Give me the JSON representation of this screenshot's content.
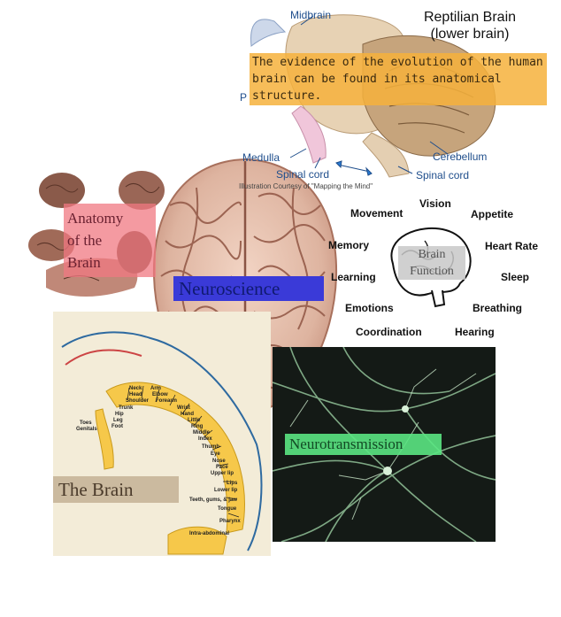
{
  "reptilian": {
    "title_line1": "Reptilian Brain",
    "title_line2": "(lower brain)",
    "note": "The evidence of the evolution of the human brain can be found in its anatomical structure.",
    "labels": {
      "midbrain": "Midbrain",
      "pons_partial": "P",
      "medulla": "Medulla",
      "spinal_cord_left": "Spinal cord",
      "spinal_cord_right": "Spinal cord",
      "cerebellum": "Cerebellum"
    },
    "credit": "Illustration Courtesy of \"Mapping the Mind\""
  },
  "anatomy": {
    "label_line1": "Anatomy",
    "label_line2": "of the",
    "label_line3": "Brain"
  },
  "neuroscience": {
    "label": "Neuroscience"
  },
  "brain_function": {
    "center_line1": "Brain",
    "center_line2": "Function",
    "words": [
      "Vision",
      "Movement",
      "Appetite",
      "Memory",
      "Heart Rate",
      "Learning",
      "Sleep",
      "Emotions",
      "Breathing",
      "Coordination",
      "Hearing"
    ]
  },
  "homunculus": {
    "label": "The Brain",
    "parts": [
      "Neck",
      "Head",
      "Shoulder",
      "Arm",
      "Elbow",
      "Forearm",
      "Trunk",
      "Hip",
      "Leg",
      "Foot",
      "Toes",
      "Genitals",
      "Wrist",
      "Hand",
      "Little",
      "Ring",
      "Middle",
      "Index",
      "Thumb",
      "Eye",
      "Nose",
      "Face",
      "Upper lip",
      "Lips",
      "Lower lip",
      "Teeth, gums, & jaw",
      "Tongue",
      "Pharynx",
      "Intra-abdominal"
    ]
  },
  "neurotransmission": {
    "label": "Neurotransmission"
  },
  "colors": {
    "label_blue": "#1f4e8c",
    "highlight_orange": "#f6b23c",
    "highlight_green": "#5ae682",
    "neuro_blue": "#3a3ad8",
    "pink": "#f07882"
  }
}
